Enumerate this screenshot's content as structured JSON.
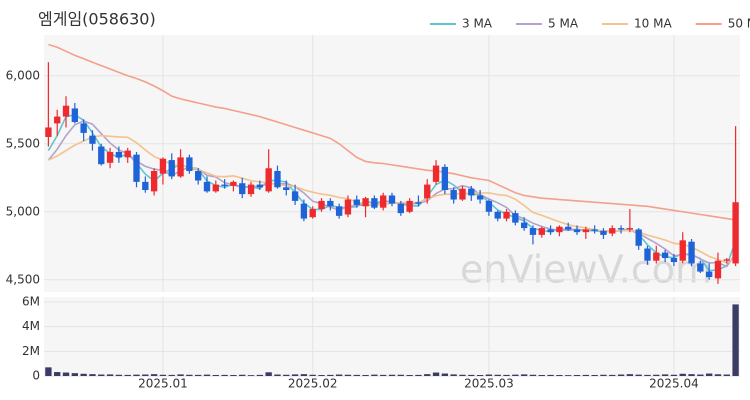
{
  "chart_data": {
    "type": "candlestick",
    "title": "엠게임(058630)",
    "watermark": "enViewV.com",
    "categories": [
      null,
      null,
      null,
      null,
      null,
      null,
      null,
      null,
      null,
      null,
      null,
      null,
      null,
      "2025.01",
      null,
      null,
      null,
      null,
      null,
      null,
      null,
      null,
      null,
      null,
      null,
      null,
      null,
      null,
      null,
      null,
      "2025.02",
      null,
      null,
      null,
      null,
      null,
      null,
      null,
      null,
      null,
      null,
      null,
      null,
      null,
      null,
      null,
      null,
      null,
      null,
      null,
      "2025.03",
      null,
      null,
      null,
      null,
      null,
      null,
      null,
      null,
      null,
      null,
      null,
      null,
      null,
      null,
      null,
      null,
      null,
      null,
      null,
      null,
      "2025.04",
      null,
      null,
      null,
      null,
      null,
      null,
      null
    ],
    "open": [
      5550,
      5650,
      5700,
      5760,
      5650,
      5560,
      5480,
      5360,
      5440,
      5400,
      5420,
      5220,
      5150,
      5280,
      5380,
      5260,
      5400,
      5300,
      5220,
      5150,
      5200,
      5190,
      5210,
      5130,
      5200,
      5150,
      5300,
      5180,
      5150,
      5060,
      4960,
      5020,
      5080,
      5040,
      4980,
      5090,
      5040,
      5100,
      5030,
      5120,
      5060,
      5000,
      5070,
      5100,
      5220,
      5330,
      5160,
      5090,
      5170,
      5120,
      5080,
      5000,
      4950,
      4990,
      4920,
      4880,
      4830,
      4870,
      4850,
      4890,
      4870,
      4850,
      4870,
      4860,
      4840,
      4880,
      4870,
      4870,
      4730,
      4640,
      4700,
      4660,
      4640,
      4780,
      4620,
      4560,
      4510,
      4640,
      4620
    ],
    "high": [
      6100,
      5750,
      5850,
      5800,
      5680,
      5600,
      5500,
      5470,
      5480,
      5470,
      5440,
      5260,
      5320,
      5400,
      5430,
      5460,
      5420,
      5320,
      5260,
      5230,
      5240,
      5230,
      5250,
      5220,
      5230,
      5460,
      5340,
      5230,
      5200,
      5090,
      5040,
      5100,
      5100,
      5060,
      5120,
      5120,
      5110,
      5120,
      5140,
      5140,
      5080,
      5100,
      5120,
      5240,
      5380,
      5350,
      5180,
      5190,
      5190,
      5160,
      5090,
      5010,
      5020,
      5010,
      4960,
      4900,
      4890,
      4900,
      4900,
      4920,
      4900,
      4890,
      4900,
      4880,
      4900,
      4900,
      5020,
      4880,
      4750,
      4750,
      4720,
      4690,
      4850,
      4800,
      4640,
      4620,
      4700,
      4660,
      5630
    ],
    "low": [
      5480,
      5560,
      5620,
      5650,
      5520,
      5450,
      5340,
      5320,
      5360,
      5360,
      5180,
      5140,
      5120,
      5200,
      5240,
      5250,
      5280,
      5200,
      5140,
      5140,
      5170,
      5150,
      5100,
      5110,
      5160,
      5140,
      5170,
      5120,
      5050,
      4930,
      4950,
      5000,
      5010,
      4950,
      4960,
      5030,
      4960,
      5020,
      5010,
      5040,
      4970,
      4990,
      5040,
      5060,
      5200,
      5130,
      5060,
      5080,
      5080,
      5060,
      4970,
      4930,
      4930,
      4900,
      4860,
      4760,
      4810,
      4830,
      4820,
      4860,
      4830,
      4800,
      4840,
      4800,
      4820,
      4840,
      4850,
      4720,
      4610,
      4620,
      4630,
      4600,
      4620,
      4600,
      4550,
      4500,
      4470,
      4620,
      4600
    ],
    "close": [
      5620,
      5700,
      5780,
      5660,
      5580,
      5500,
      5350,
      5440,
      5400,
      5450,
      5220,
      5160,
      5300,
      5390,
      5260,
      5400,
      5300,
      5230,
      5150,
      5200,
      5190,
      5220,
      5130,
      5200,
      5180,
      5320,
      5180,
      5160,
      5080,
      4950,
      5020,
      5080,
      5040,
      4970,
      5090,
      5050,
      5100,
      5030,
      5120,
      5060,
      4990,
      5080,
      5060,
      5200,
      5340,
      5160,
      5090,
      5170,
      5120,
      5090,
      5000,
      4950,
      5000,
      4920,
      4880,
      4830,
      4880,
      4850,
      4890,
      4870,
      4850,
      4870,
      4860,
      4830,
      4880,
      4870,
      4880,
      4750,
      4640,
      4700,
      4660,
      4630,
      4790,
      4620,
      4560,
      4520,
      4640,
      4650,
      5070
    ],
    "volume": [
      700000,
      320000,
      280000,
      230000,
      180000,
      150000,
      120000,
      130000,
      100000,
      90000,
      110000,
      120000,
      150000,
      100000,
      90000,
      130000,
      100000,
      90000,
      110000,
      80000,
      90000,
      80000,
      100000,
      70000,
      90000,
      300000,
      120000,
      100000,
      130000,
      150000,
      100000,
      80000,
      90000,
      120000,
      100000,
      90000,
      80000,
      110000,
      90000,
      100000,
      100000,
      80000,
      90000,
      150000,
      280000,
      200000,
      130000,
      100000,
      90000,
      80000,
      120000,
      100000,
      90000,
      110000,
      130000,
      100000,
      80000,
      90000,
      80000,
      70000,
      80000,
      90000,
      80000,
      100000,
      90000,
      120000,
      150000,
      110000,
      90000,
      100000,
      130000,
      100000,
      180000,
      150000,
      120000,
      200000,
      140000,
      120000,
      5800000
    ],
    "up_color": "#ef2a2f",
    "down_color": "#1f63d8",
    "volume_color": "#3b3b68",
    "ma": [
      {
        "name": "3 MA",
        "color": "#5cc6d4",
        "values": [
          5450,
          5560,
          5700,
          5713,
          5673,
          5580,
          5477,
          5430,
          5397,
          5430,
          5357,
          5277,
          5227,
          5283,
          5317,
          5350,
          5320,
          5310,
          5227,
          5193,
          5180,
          5203,
          5180,
          5183,
          5170,
          5233,
          5227,
          5220,
          5140,
          5063,
          5017,
          5017,
          5047,
          5030,
          5033,
          5037,
          5080,
          5060,
          5083,
          5070,
          5057,
          5043,
          5043,
          5113,
          5200,
          5233,
          5197,
          5140,
          5127,
          5127,
          5070,
          5013,
          4983,
          4957,
          4933,
          4877,
          4863,
          4853,
          4873,
          4870,
          4870,
          4863,
          4860,
          4853,
          4857,
          4860,
          4877,
          4833,
          4757,
          4697,
          4667,
          4663,
          4693,
          4680,
          4657,
          4567,
          4573,
          4603,
          4787
        ]
      },
      {
        "name": "5 MA",
        "color": "#b3a2cc",
        "values": [
          5380,
          5460,
          5560,
          5640,
          5668,
          5644,
          5574,
          5506,
          5454,
          5428,
          5372,
          5334,
          5314,
          5304,
          5266,
          5302,
          5330,
          5316,
          5268,
          5256,
          5214,
          5198,
          5178,
          5188,
          5184,
          5210,
          5202,
          5208,
          5184,
          5138,
          5078,
          5058,
          5034,
          5012,
          5040,
          5046,
          5050,
          5048,
          5078,
          5072,
          5060,
          5056,
          5062,
          5080,
          5134,
          5168,
          5170,
          5192,
          5176,
          5126,
          5094,
          5066,
          5032,
          4972,
          4950,
          4916,
          4892,
          4872,
          4866,
          4864,
          4868,
          4866,
          4868,
          4856,
          4858,
          4862,
          4864,
          4842,
          4804,
          4768,
          4726,
          4676,
          4684,
          4688,
          4652,
          4624,
          4626,
          4598,
          4692
        ]
      },
      {
        "name": "10 MA",
        "color": "#f3c28d",
        "values": [
          5380,
          5410,
          5450,
          5490,
          5520,
          5550,
          5560,
          5555,
          5550,
          5548,
          5508,
          5454,
          5406,
          5379,
          5347,
          5337,
          5332,
          5311,
          5286,
          5261,
          5258,
          5264,
          5247,
          5228,
          5220,
          5212,
          5200,
          5193,
          5186,
          5161,
          5144,
          5130,
          5121,
          5105,
          5096,
          5069,
          5061,
          5048,
          5052,
          5064,
          5068,
          5068,
          5070,
          5093,
          5118,
          5129,
          5128,
          5135,
          5135,
          5138,
          5139,
          5126,
          5120,
          5092,
          5046,
          4995,
          4974,
          4950,
          4927,
          4905,
          4890,
          4882,
          4868,
          4859,
          4859,
          4863,
          4863,
          4853,
          4828,
          4811,
          4792,
          4768,
          4761,
          4740,
          4708,
          4672,
          4648,
          4625,
          4662
        ]
      },
      {
        "name": "50 MA",
        "color": "#f4a08b",
        "values": [
          6230,
          6210,
          6180,
          6150,
          6125,
          6100,
          6075,
          6050,
          6025,
          6000,
          5980,
          5955,
          5925,
          5890,
          5850,
          5830,
          5815,
          5800,
          5785,
          5770,
          5760,
          5745,
          5730,
          5715,
          5700,
          5680,
          5660,
          5640,
          5620,
          5600,
          5580,
          5560,
          5540,
          5500,
          5450,
          5400,
          5370,
          5360,
          5355,
          5345,
          5335,
          5325,
          5315,
          5305,
          5300,
          5290,
          5280,
          5265,
          5250,
          5240,
          5230,
          5200,
          5170,
          5140,
          5120,
          5110,
          5100,
          5095,
          5090,
          5085,
          5080,
          5075,
          5070,
          5065,
          5060,
          5055,
          5050,
          5045,
          5040,
          5030,
          5020,
          5010,
          5000,
          4990,
          4980,
          4970,
          4960,
          4950,
          4940
        ]
      }
    ],
    "ylim": [
      4410,
      6300
    ],
    "yticks": [
      {
        "value": 4500,
        "label": "4,500"
      },
      {
        "value": 5000,
        "label": "5,000"
      },
      {
        "value": 5500,
        "label": "5,500"
      },
      {
        "value": 6000,
        "label": "6,000"
      }
    ],
    "volume_ylim": [
      0,
      6400000
    ],
    "volume_yticks": [
      0,
      {
        "value": 2000000,
        "label": "2M"
      },
      {
        "value": 4000000,
        "label": "4M"
      },
      {
        "value": 6000000,
        "label": "6M"
      }
    ],
    "grid": true
  }
}
